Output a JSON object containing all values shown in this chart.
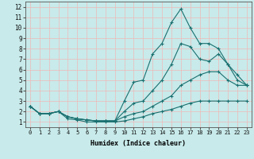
{
  "xlabel": "Humidex (Indice chaleur)",
  "ylabel": "",
  "xlim": [
    -0.5,
    23.5
  ],
  "ylim": [
    0.5,
    12.5
  ],
  "xticks": [
    0,
    1,
    2,
    3,
    4,
    5,
    6,
    7,
    8,
    9,
    10,
    11,
    12,
    13,
    14,
    15,
    16,
    17,
    18,
    19,
    20,
    21,
    22,
    23
  ],
  "yticks": [
    1,
    2,
    3,
    4,
    5,
    6,
    7,
    8,
    9,
    10,
    11,
    12
  ],
  "background_color": "#c8eaea",
  "grid_color": "#f0b8b8",
  "line_color": "#1a7070",
  "curves": [
    {
      "x": [
        0,
        1,
        2,
        3,
        4,
        5,
        6,
        7,
        8,
        9,
        10,
        11,
        12,
        13,
        14,
        15,
        16,
        17,
        18,
        19,
        20,
        21,
        22,
        23
      ],
      "y": [
        2.5,
        1.8,
        1.8,
        2.0,
        1.3,
        1.2,
        1.0,
        1.0,
        1.0,
        1.0,
        1.1,
        1.3,
        1.5,
        1.8,
        2.0,
        2.2,
        2.5,
        2.8,
        3.0,
        3.0,
        3.0,
        3.0,
        3.0,
        3.0
      ]
    },
    {
      "x": [
        0,
        1,
        2,
        3,
        4,
        5,
        6,
        7,
        8,
        9,
        10,
        11,
        12,
        13,
        14,
        15,
        16,
        17,
        18,
        19,
        20,
        21,
        22,
        23
      ],
      "y": [
        2.5,
        1.8,
        1.8,
        2.0,
        1.5,
        1.3,
        1.2,
        1.1,
        1.1,
        1.1,
        1.5,
        1.8,
        2.0,
        2.5,
        3.0,
        3.5,
        4.5,
        5.0,
        5.5,
        5.8,
        5.8,
        5.0,
        4.5,
        4.5
      ]
    },
    {
      "x": [
        0,
        1,
        2,
        3,
        4,
        5,
        6,
        7,
        8,
        9,
        10,
        11,
        12,
        13,
        14,
        15,
        16,
        17,
        18,
        19,
        20,
        21,
        22,
        23
      ],
      "y": [
        2.5,
        1.8,
        1.8,
        2.0,
        1.5,
        1.3,
        1.2,
        1.1,
        1.1,
        1.1,
        2.0,
        2.8,
        3.0,
        4.0,
        5.0,
        6.5,
        8.5,
        8.2,
        7.0,
        6.8,
        7.5,
        6.5,
        5.5,
        4.5
      ]
    },
    {
      "x": [
        0,
        1,
        2,
        3,
        4,
        5,
        6,
        7,
        8,
        9,
        10,
        11,
        12,
        13,
        14,
        15,
        16,
        17,
        18,
        19,
        20,
        21,
        22,
        23
      ],
      "y": [
        2.5,
        1.8,
        1.8,
        2.0,
        1.5,
        1.3,
        1.2,
        1.1,
        1.1,
        1.1,
        3.0,
        4.8,
        5.0,
        7.5,
        8.5,
        10.5,
        11.8,
        10.0,
        8.5,
        8.5,
        8.0,
        6.5,
        5.0,
        4.5
      ]
    }
  ]
}
